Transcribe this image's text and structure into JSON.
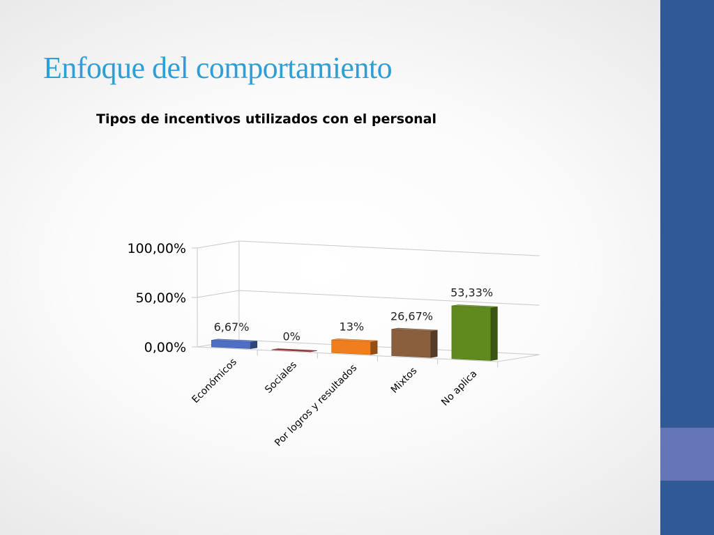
{
  "slide": {
    "title": "Enfoque del comportamiento",
    "title_color": "#2e9fd4"
  },
  "sidebar": {
    "colors": {
      "top": "#2f5a96",
      "middle": "#6475b8",
      "bottom": "#2f5a96"
    }
  },
  "chart_data": {
    "type": "bar",
    "style": "3d-column",
    "title": "Tipos de incentivos utilizados con el personal",
    "xlabel": "",
    "ylabel": "",
    "ylim": [
      0,
      100
    ],
    "y_ticks": [
      "0,00%",
      "50,00%",
      "100,00%"
    ],
    "grid": true,
    "legend": "none",
    "categories": [
      "Económicos",
      "Sociales",
      "Por logros y resultados",
      "Mixtos",
      "No aplica"
    ],
    "values": [
      6.67,
      0,
      13,
      26.67,
      53.33
    ],
    "data_labels": [
      "6,67%",
      "0%",
      "13%",
      "26,67%",
      "53,33%"
    ],
    "colors": [
      "#4f6fc4",
      "#a23f3f",
      "#f07e1e",
      "#8a5f3e",
      "#5f8a1e"
    ]
  }
}
